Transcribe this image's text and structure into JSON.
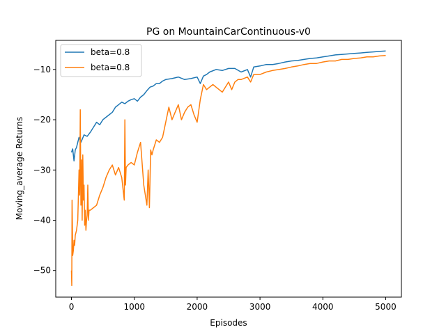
{
  "chart_data": {
    "type": "line",
    "title": "PG on MountainCarContinuous-v0",
    "xlabel": "Episodes",
    "ylabel": "Moving_average Returns",
    "xlim": [
      -250,
      5250
    ],
    "ylim": [
      -55.3,
      -4.2
    ],
    "xticks": [
      0,
      1000,
      2000,
      3000,
      4000,
      5000
    ],
    "xtick_labels": [
      "0",
      "1000",
      "2000",
      "3000",
      "4000",
      "5000"
    ],
    "yticks": [
      -50,
      -40,
      -30,
      -20,
      -10
    ],
    "ytick_labels": [
      "−50",
      "−40",
      "−30",
      "−20",
      "−10"
    ],
    "grid": false,
    "legend_position": "upper-left",
    "series": [
      {
        "name": "beta=0.8",
        "color": "#1f77b4",
        "x": [
          0,
          20,
          40,
          60,
          80,
          100,
          120,
          150,
          200,
          250,
          300,
          350,
          400,
          450,
          500,
          550,
          600,
          650,
          700,
          750,
          800,
          850,
          900,
          950,
          1000,
          1050,
          1100,
          1150,
          1200,
          1250,
          1300,
          1350,
          1400,
          1450,
          1500,
          1600,
          1700,
          1800,
          1900,
          2000,
          2050,
          2100,
          2150,
          2200,
          2300,
          2400,
          2500,
          2600,
          2700,
          2800,
          2850,
          2900,
          3000,
          3100,
          3200,
          3300,
          3400,
          3500,
          3600,
          3700,
          3800,
          3900,
          4000,
          4100,
          4200,
          4300,
          4400,
          4500,
          4600,
          4700,
          4800,
          4900,
          5000
        ],
        "y": [
          -26.5,
          -25.8,
          -28.2,
          -26.0,
          -25.5,
          -24.5,
          -23.5,
          -24.5,
          -23.0,
          -23.3,
          -22.5,
          -21.5,
          -20.5,
          -21.0,
          -20.0,
          -19.5,
          -19.0,
          -18.5,
          -17.5,
          -17.0,
          -16.5,
          -16.8,
          -16.3,
          -16.0,
          -15.8,
          -16.3,
          -15.5,
          -15.0,
          -14.2,
          -13.5,
          -13.3,
          -12.8,
          -12.8,
          -12.3,
          -12.0,
          -11.8,
          -11.5,
          -12.0,
          -11.8,
          -11.5,
          -12.8,
          -11.3,
          -11.0,
          -10.5,
          -10.0,
          -10.2,
          -9.8,
          -9.8,
          -10.5,
          -10.0,
          -11.5,
          -9.5,
          -9.3,
          -9.0,
          -9.0,
          -8.8,
          -8.5,
          -8.3,
          -8.2,
          -8.0,
          -7.8,
          -7.7,
          -7.5,
          -7.3,
          -7.1,
          -7.0,
          -6.9,
          -6.8,
          -6.7,
          -6.6,
          -6.5,
          -6.4,
          -6.3
        ]
      },
      {
        "name": "beta=0.8",
        "color": "#ff7f0e",
        "x": [
          0,
          5,
          10,
          15,
          20,
          30,
          40,
          50,
          60,
          80,
          100,
          120,
          130,
          140,
          150,
          160,
          170,
          180,
          190,
          200,
          210,
          220,
          230,
          240,
          250,
          260,
          270,
          280,
          300,
          350,
          400,
          450,
          500,
          550,
          600,
          650,
          700,
          750,
          800,
          840,
          850,
          860,
          870,
          900,
          950,
          1000,
          1050,
          1100,
          1150,
          1200,
          1220,
          1240,
          1260,
          1280,
          1300,
          1350,
          1400,
          1450,
          1500,
          1550,
          1600,
          1650,
          1700,
          1750,
          1800,
          1850,
          1900,
          1950,
          2000,
          2050,
          2100,
          2150,
          2200,
          2250,
          2300,
          2400,
          2500,
          2550,
          2600,
          2650,
          2700,
          2800,
          2850,
          2900,
          3000,
          3100,
          3200,
          3300,
          3400,
          3500,
          3600,
          3700,
          3800,
          3900,
          4000,
          4100,
          4200,
          4300,
          4400,
          4500,
          4600,
          4700,
          4800,
          4900,
          5000
        ],
        "y": [
          -50.0,
          -53.0,
          -36.0,
          -41.0,
          -47.0,
          -46.0,
          -44.0,
          -45.0,
          -43.0,
          -42.0,
          -40.0,
          -30.0,
          -35.0,
          -18.0,
          -37.0,
          -28.0,
          -40.0,
          -27.0,
          -36.0,
          -33.0,
          -41.0,
          -38.0,
          -42.0,
          -40.0,
          -39.0,
          -33.0,
          -40.0,
          -38.0,
          -38.0,
          -37.5,
          -37.0,
          -35.0,
          -33.5,
          -31.5,
          -30.0,
          -29.0,
          -31.0,
          -29.5,
          -31.5,
          -36.0,
          -20.0,
          -33.0,
          -29.5,
          -29.0,
          -28.5,
          -29.0,
          -26.5,
          -24.5,
          -33.0,
          -37.0,
          -30.0,
          -37.5,
          -26.0,
          -27.0,
          -26.0,
          -24.0,
          -24.5,
          -23.5,
          -20.5,
          -17.5,
          -20.0,
          -18.5,
          -17.0,
          -20.0,
          -18.5,
          -17.5,
          -17.0,
          -19.0,
          -20.5,
          -16.0,
          -13.0,
          -14.0,
          -13.5,
          -13.0,
          -13.5,
          -14.5,
          -12.5,
          -14.0,
          -12.5,
          -12.0,
          -12.0,
          -11.5,
          -12.5,
          -11.0,
          -11.0,
          -10.5,
          -10.2,
          -10.0,
          -9.8,
          -9.5,
          -9.3,
          -9.0,
          -8.8,
          -8.8,
          -8.5,
          -8.3,
          -8.3,
          -8.0,
          -8.0,
          -7.8,
          -7.7,
          -7.5,
          -7.5,
          -7.3,
          -7.2
        ]
      }
    ]
  }
}
